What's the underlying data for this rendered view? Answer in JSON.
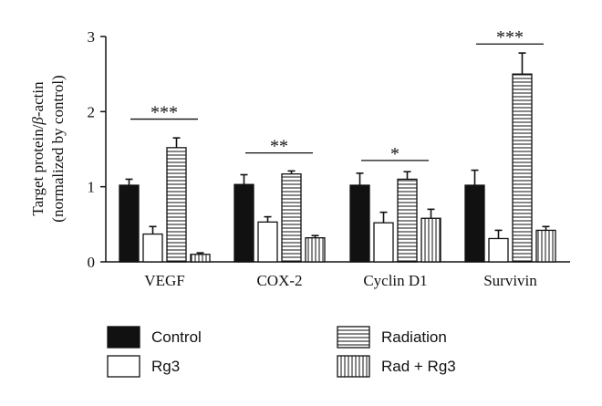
{
  "chart_data": {
    "type": "bar",
    "categories": [
      "VEGF",
      "COX-2",
      "Cyclin D1",
      "Survivin"
    ],
    "ylabel_line1": "Target protein/",
    "ylabel_beta": "β",
    "ylabel_line1_tail": "-actin",
    "ylabel_line2": "(normalized by control)",
    "ylim": [
      0,
      3
    ],
    "yticks": [
      "0",
      "1",
      "2",
      "3"
    ],
    "series": [
      {
        "name": "Control",
        "pattern": "solid",
        "values": [
          1.02,
          1.03,
          1.02,
          1.02
        ],
        "errors": [
          0.08,
          0.13,
          0.16,
          0.2
        ]
      },
      {
        "name": "Rg3",
        "pattern": "empty",
        "values": [
          0.37,
          0.53,
          0.52,
          0.31
        ],
        "errors": [
          0.1,
          0.07,
          0.14,
          0.11
        ]
      },
      {
        "name": "Radiation",
        "pattern": "horizontal",
        "values": [
          1.52,
          1.17,
          1.1,
          2.5
        ],
        "errors": [
          0.13,
          0.04,
          0.1,
          0.28
        ]
      },
      {
        "name": "Rad + Rg3",
        "pattern": "vertical",
        "values": [
          0.1,
          0.32,
          0.58,
          0.42
        ],
        "errors": [
          0.02,
          0.03,
          0.12,
          0.05
        ]
      }
    ],
    "significance": [
      {
        "category": "VEGF",
        "label": "***",
        "y": 1.9
      },
      {
        "category": "COX-2",
        "label": "**",
        "y": 1.45
      },
      {
        "category": "Cyclin D1",
        "label": "*",
        "y": 1.35
      },
      {
        "category": "Survivin",
        "label": "***",
        "y": 2.9
      }
    ],
    "legend": {
      "placement": "bottom",
      "labels": [
        "Control",
        "Rg3",
        "Radiation",
        "Rad + Rg3"
      ]
    }
  }
}
